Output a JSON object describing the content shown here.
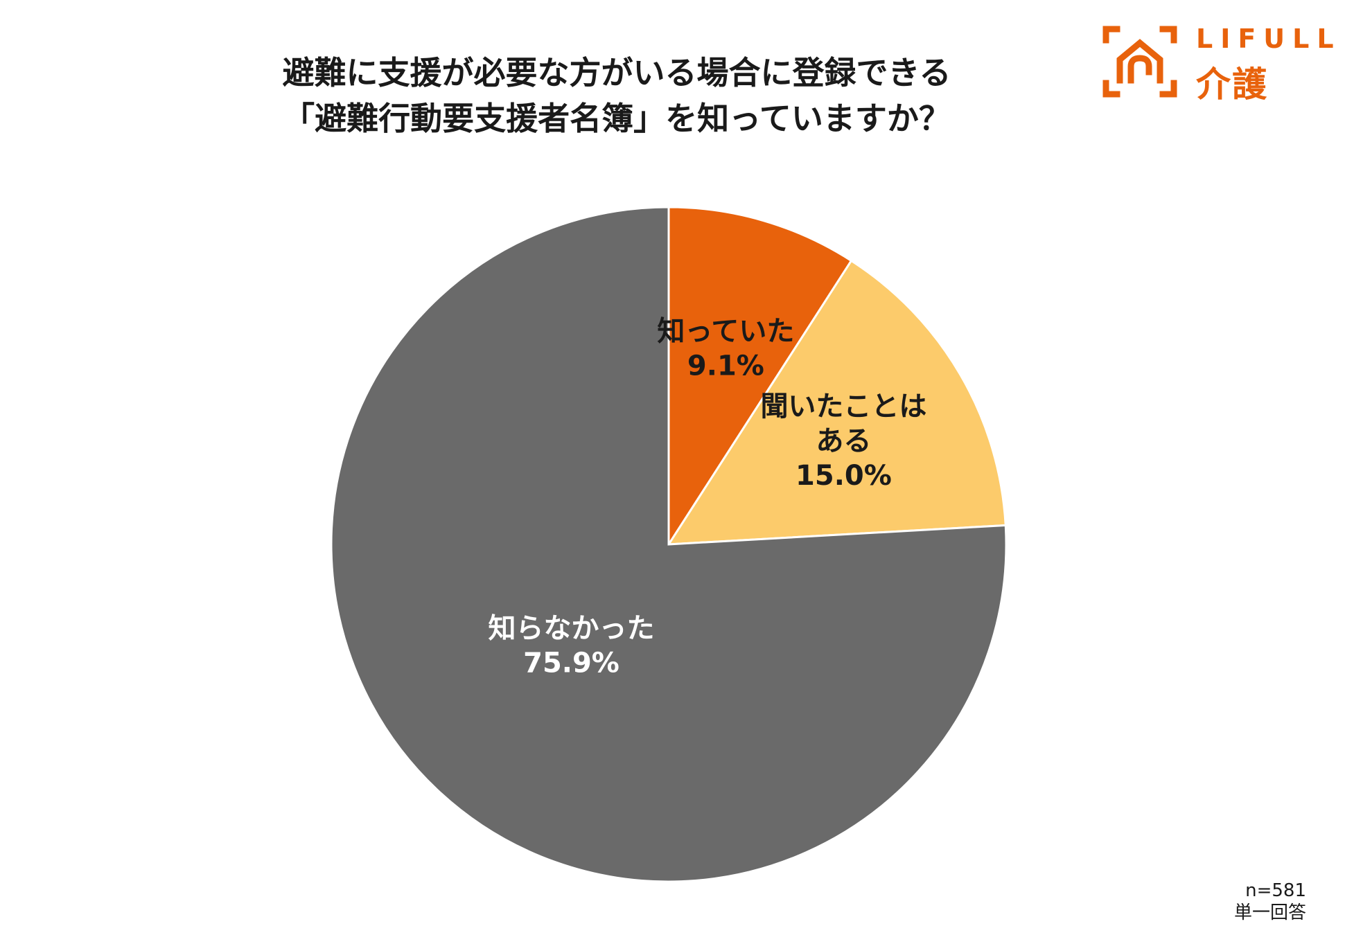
{
  "logo": {
    "word": "LIFULL",
    "sub": "介護",
    "icon": "house-bracket-icon",
    "color": "#e8620c"
  },
  "chart_data": {
    "type": "pie",
    "title": [
      "避難に支援が必要な方がいる場合に登録できる",
      "「避難行動要支援者名簿」を知っていますか？"
    ],
    "slices": [
      {
        "label": [
          "知っていた"
        ],
        "value": 9.1,
        "value_label": "9.1%",
        "color": "#e8620c",
        "text_color": "#1a1a1a"
      },
      {
        "label": [
          "聞いたことは",
          "ある"
        ],
        "value": 15.0,
        "value_label": "15.0%",
        "color": "#fccb6b",
        "text_color": "#1a1a1a"
      },
      {
        "label": [
          "知らなかった"
        ],
        "value": 75.9,
        "value_label": "75.9%",
        "color": "#6a6a6a",
        "text_color": "#ffffff"
      }
    ],
    "start_angle": "12 o'clock",
    "direction": "clockwise",
    "legend": "none"
  },
  "footnote": {
    "sample": "n=581",
    "answer_type": "単一回答"
  }
}
